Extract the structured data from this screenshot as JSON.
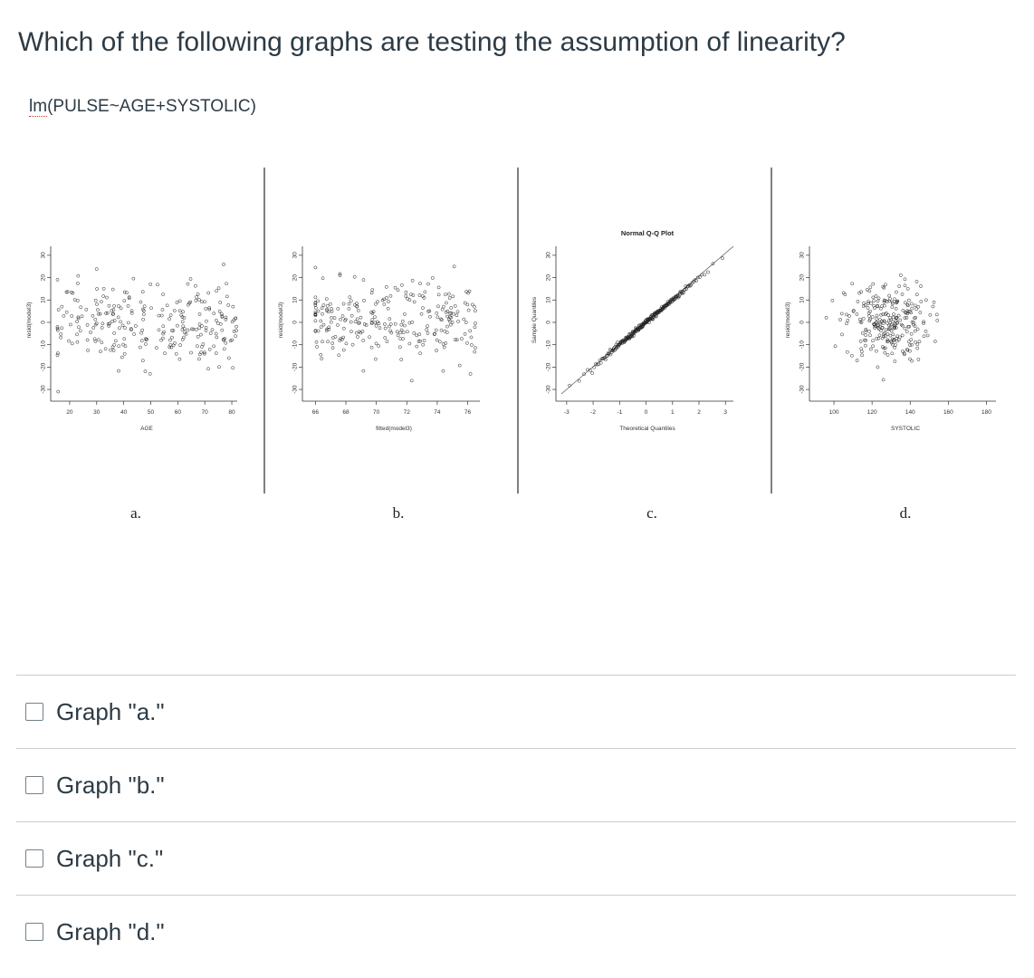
{
  "question": "Which of the following graphs are testing the assumption of linearity?",
  "model_formula": {
    "func": "lm",
    "args": "(PULSE~AGE+SYSTOLIC)"
  },
  "panels": [
    {
      "letter": "a.",
      "xlabel": "AGE",
      "ylabel": "resid(model3)",
      "title": ""
    },
    {
      "letter": "b.",
      "xlabel": "fitted(model3)",
      "ylabel": "resid(model3)",
      "title": ""
    },
    {
      "letter": "c.",
      "xlabel": "Theoretical Quantiles",
      "ylabel": "Sample Quantiles",
      "title": "Normal Q-Q Plot"
    },
    {
      "letter": "d.",
      "xlabel": "SYSTOLIC",
      "ylabel": "resid(model3)",
      "title": ""
    }
  ],
  "chart_data": [
    {
      "type": "scatter",
      "title": "",
      "xlabel": "AGE",
      "ylabel": "resid(model3)",
      "xlim": [
        15,
        82
      ],
      "ylim": [
        -32,
        34
      ],
      "xticks": [
        20,
        30,
        40,
        50,
        60,
        70,
        80
      ],
      "yticks": [
        -30,
        -20,
        -10,
        0,
        10,
        20,
        30
      ],
      "n_points": 260
    },
    {
      "type": "scatter",
      "title": "",
      "xlabel": "fitted(model3)",
      "ylabel": "resid(model3)",
      "xlim": [
        65.5,
        76.8
      ],
      "ylim": [
        -32,
        34
      ],
      "xticks": [
        66,
        68,
        70,
        72,
        74,
        76
      ],
      "yticks": [
        -30,
        -20,
        -10,
        0,
        10,
        20,
        30
      ],
      "n_points": 260
    },
    {
      "type": "scatter",
      "title": "Normal Q-Q Plot",
      "xlabel": "Theoretical Quantiles",
      "ylabel": "Sample Quantiles",
      "xlim": [
        -3.2,
        3.3
      ],
      "ylim": [
        -32,
        34
      ],
      "xticks": [
        -3,
        -2,
        -1,
        0,
        1,
        2,
        3
      ],
      "yticks": [
        -30,
        -20,
        -10,
        0,
        10,
        20,
        30
      ],
      "reference_line": true,
      "n_points": 260
    },
    {
      "type": "scatter",
      "title": "",
      "xlabel": "SYSTOLIC",
      "ylabel": "resid(model3)",
      "xlim": [
        90,
        185
      ],
      "ylim": [
        -32,
        34
      ],
      "xticks": [
        100,
        120,
        140,
        160,
        180
      ],
      "yticks": [
        -30,
        -20,
        -10,
        0,
        10,
        20,
        30
      ],
      "n_points": 260
    }
  ],
  "options": [
    {
      "label": "Graph \"a.\""
    },
    {
      "label": "Graph \"b.\""
    },
    {
      "label": "Graph \"c.\""
    },
    {
      "label": "Graph \"d.\""
    }
  ]
}
